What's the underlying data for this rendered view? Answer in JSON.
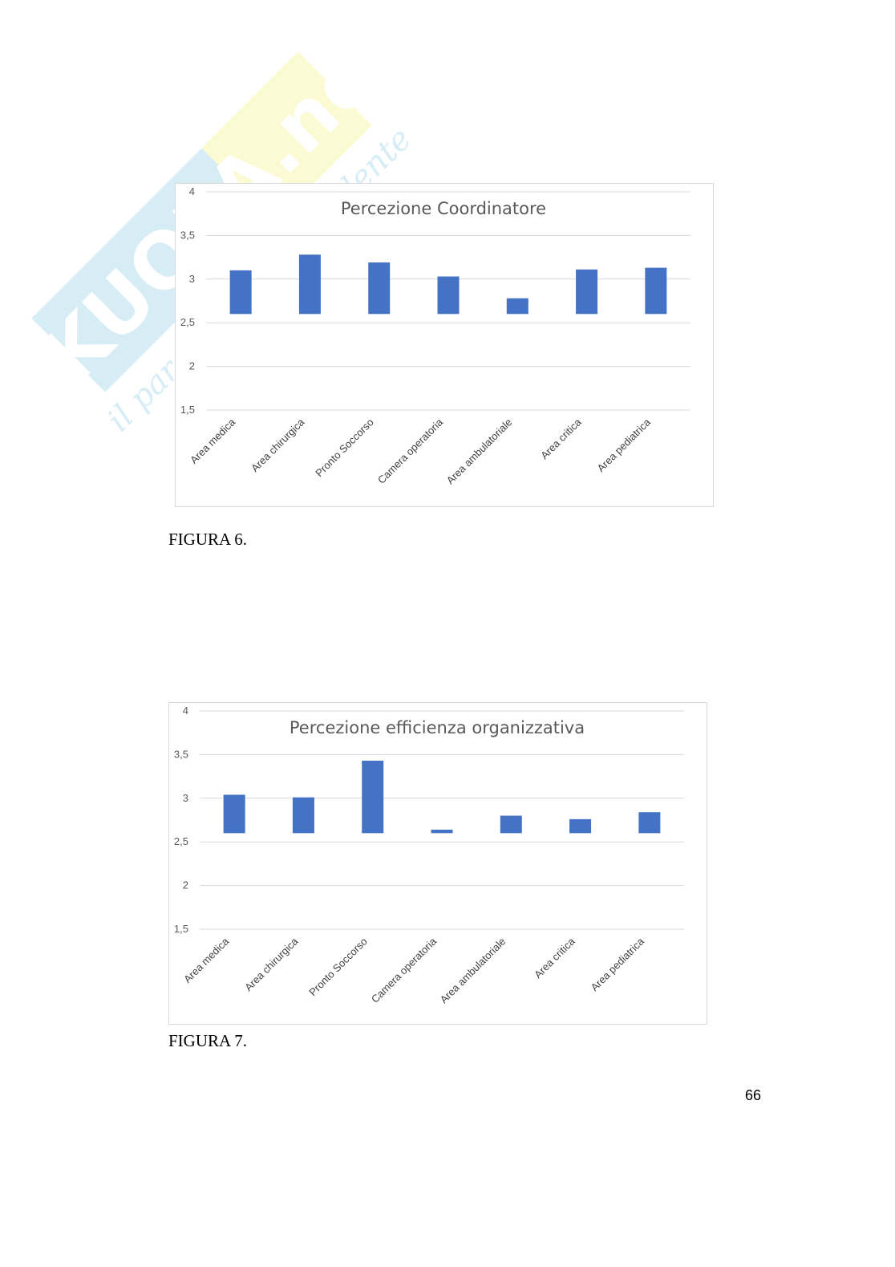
{
  "watermark": {
    "brand": "SKUOLA.net",
    "tagline": "il paradiso dello studente"
  },
  "colors": {
    "bar": "#4472c4",
    "grid": "#d9d9d9",
    "watermark_blue": "#b8dff0",
    "watermark_yellow": "#fbf6b0"
  },
  "figures": [
    {
      "caption": "FIGURA 6."
    },
    {
      "caption": "FIGURA 7."
    }
  ],
  "page_number": "66",
  "chart_data": [
    {
      "type": "bar",
      "title": "Percezione Coordinatore",
      "categories": [
        "Area medica",
        "Area chirurgica",
        "Pronto Soccorso",
        "Camera operatoria",
        "Area ambulatoriale",
        "Area critica",
        "Area pediatrica"
      ],
      "values": [
        3.1,
        3.28,
        3.19,
        3.03,
        2.78,
        3.11,
        3.13
      ],
      "ylim": [
        1.5,
        4
      ],
      "yticks": [
        "1,5",
        "2",
        "2,5",
        "3",
        "3,5",
        "4"
      ],
      "grid": true
    },
    {
      "type": "bar",
      "title": "Percezione efficienza organizzativa",
      "categories": [
        "Area medica",
        "Area chirurgica",
        "Pronto Soccorso",
        "Camera operatoria",
        "Area ambulatoriale",
        "Area critica",
        "Area pediatrica"
      ],
      "values": [
        3.04,
        3.01,
        3.43,
        2.64,
        2.8,
        2.76,
        2.84
      ],
      "ylim": [
        1.5,
        4
      ],
      "yticks": [
        "1,5",
        "2",
        "2,5",
        "3",
        "3,5",
        "4"
      ],
      "grid": true
    }
  ]
}
